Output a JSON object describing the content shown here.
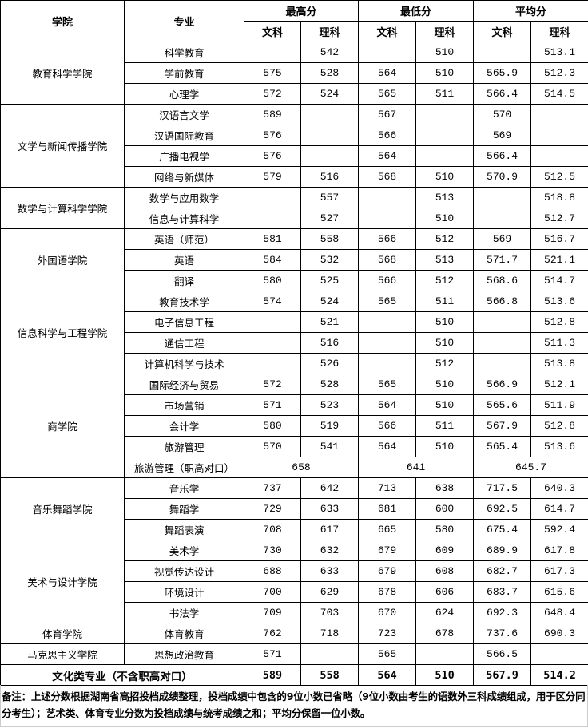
{
  "header": {
    "college": "学院",
    "major": "专业",
    "groups": [
      "最高分",
      "最低分",
      "平均分"
    ],
    "sub": [
      "文科",
      "理科",
      "文科",
      "理科",
      "文科",
      "理科"
    ]
  },
  "colleges": [
    {
      "name": "教育科学学院",
      "majors": [
        {
          "name": "科学教育",
          "scores": [
            "",
            "542",
            "",
            "510",
            "",
            "513.1"
          ]
        },
        {
          "name": "学前教育",
          "scores": [
            "575",
            "528",
            "564",
            "510",
            "565.9",
            "512.3"
          ]
        },
        {
          "name": "心理学",
          "scores": [
            "572",
            "524",
            "565",
            "511",
            "566.4",
            "514.5"
          ]
        }
      ]
    },
    {
      "name": "文学与新闻传播学院",
      "majors": [
        {
          "name": "汉语言文学",
          "scores": [
            "589",
            "",
            "567",
            "",
            "570",
            ""
          ]
        },
        {
          "name": "汉语国际教育",
          "scores": [
            "576",
            "",
            "566",
            "",
            "569",
            ""
          ]
        },
        {
          "name": "广播电视学",
          "scores": [
            "576",
            "",
            "564",
            "",
            "566.4",
            ""
          ]
        },
        {
          "name": "网络与新媒体",
          "scores": [
            "579",
            "516",
            "568",
            "510",
            "570.9",
            "512.5"
          ]
        }
      ]
    },
    {
      "name": "数学与计算科学学院",
      "majors": [
        {
          "name": "数学与应用数学",
          "scores": [
            "",
            "557",
            "",
            "513",
            "",
            "518.8"
          ]
        },
        {
          "name": "信息与计算科学",
          "scores": [
            "",
            "527",
            "",
            "510",
            "",
            "512.7"
          ]
        }
      ]
    },
    {
      "name": "外国语学院",
      "majors": [
        {
          "name": "英语（师范）",
          "scores": [
            "581",
            "558",
            "566",
            "512",
            "569",
            "516.7"
          ]
        },
        {
          "name": "英语",
          "scores": [
            "584",
            "532",
            "568",
            "513",
            "571.7",
            "521.1"
          ]
        },
        {
          "name": "翻译",
          "scores": [
            "580",
            "525",
            "566",
            "512",
            "568.6",
            "514.7"
          ]
        }
      ]
    },
    {
      "name": "信息科学与工程学院",
      "majors": [
        {
          "name": "教育技术学",
          "scores": [
            "574",
            "524",
            "565",
            "511",
            "566.8",
            "513.6"
          ]
        },
        {
          "name": "电子信息工程",
          "scores": [
            "",
            "521",
            "",
            "510",
            "",
            "512.8"
          ]
        },
        {
          "name": "通信工程",
          "scores": [
            "",
            "516",
            "",
            "510",
            "",
            "511.3"
          ]
        },
        {
          "name": "计算机科学与技术",
          "scores": [
            "",
            "526",
            "",
            "512",
            "",
            "513.8"
          ]
        }
      ]
    },
    {
      "name": "商学院",
      "majors": [
        {
          "name": "国际经济与贸易",
          "scores": [
            "572",
            "528",
            "565",
            "510",
            "566.9",
            "512.1"
          ]
        },
        {
          "name": "市场营销",
          "scores": [
            "571",
            "523",
            "564",
            "510",
            "565.6",
            "511.9"
          ]
        },
        {
          "name": "会计学",
          "scores": [
            "580",
            "519",
            "566",
            "511",
            "567.9",
            "512.8"
          ]
        },
        {
          "name": "旅游管理",
          "scores": [
            "570",
            "541",
            "564",
            "510",
            "565.4",
            "513.6"
          ]
        },
        {
          "name": "旅游管理（职高对口）",
          "merged": [
            "658",
            "641",
            "645.7"
          ]
        }
      ]
    },
    {
      "name": "音乐舞蹈学院",
      "majors": [
        {
          "name": "音乐学",
          "scores": [
            "737",
            "642",
            "713",
            "638",
            "717.5",
            "640.3"
          ]
        },
        {
          "name": "舞蹈学",
          "scores": [
            "729",
            "633",
            "681",
            "600",
            "692.5",
            "614.7"
          ]
        },
        {
          "name": "舞蹈表演",
          "scores": [
            "708",
            "617",
            "665",
            "580",
            "675.4",
            "592.4"
          ]
        }
      ]
    },
    {
      "name": "美术与设计学院",
      "majors": [
        {
          "name": "美术学",
          "scores": [
            "730",
            "632",
            "679",
            "609",
            "689.9",
            "617.8"
          ]
        },
        {
          "name": "视觉传达设计",
          "scores": [
            "688",
            "633",
            "679",
            "608",
            "682.7",
            "617.3"
          ]
        },
        {
          "name": "环境设计",
          "scores": [
            "700",
            "629",
            "678",
            "606",
            "683.7",
            "615.6"
          ]
        },
        {
          "name": "书法学",
          "scores": [
            "709",
            "703",
            "670",
            "624",
            "692.3",
            "648.4"
          ]
        }
      ]
    },
    {
      "name": "体育学院",
      "majors": [
        {
          "name": "体育教育",
          "scores": [
            "762",
            "718",
            "723",
            "678",
            "737.6",
            "690.3"
          ]
        }
      ]
    },
    {
      "name": "马克思主义学院",
      "majors": [
        {
          "name": "思想政治教育",
          "scores": [
            "571",
            "",
            "565",
            "",
            "566.5",
            ""
          ]
        }
      ]
    }
  ],
  "total": {
    "label": "文化类专业（不含职高对口）",
    "scores": [
      "589",
      "558",
      "564",
      "510",
      "567.9",
      "514.2"
    ]
  },
  "note": "备注：上述分数根据湖南省高招投档成绩整理，投档成绩中包含的9位小数已省略（9位小数由考生的语数外三科成绩组成，用于区分同分考生）；艺术类、体育专业分数为投档成绩与统考成绩之和；平均分保留一位小数。"
}
